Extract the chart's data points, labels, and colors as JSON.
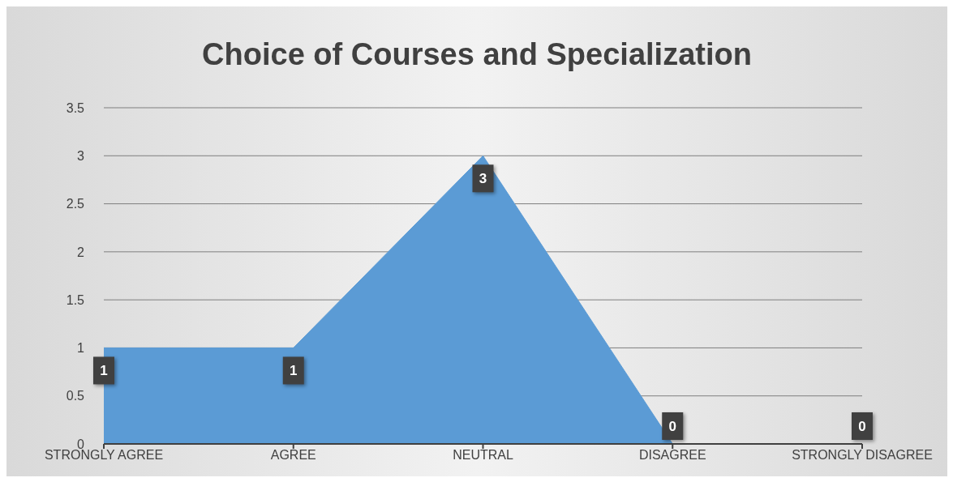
{
  "chart_data": {
    "type": "area",
    "title": "Choice of Courses and Specialization",
    "categories": [
      "STRONGLY AGREE",
      "AGREE",
      "NEUTRAL",
      "DISAGREE",
      "STRONGLY DISAGREE"
    ],
    "values": [
      1,
      1,
      3,
      0,
      0
    ],
    "color": "#5b9bd5",
    "ylim": [
      0,
      3.5
    ],
    "yticks": [
      0,
      0.5,
      1,
      1.5,
      2,
      2.5,
      3,
      3.5
    ],
    "grid": "y",
    "data_labels": true
  }
}
